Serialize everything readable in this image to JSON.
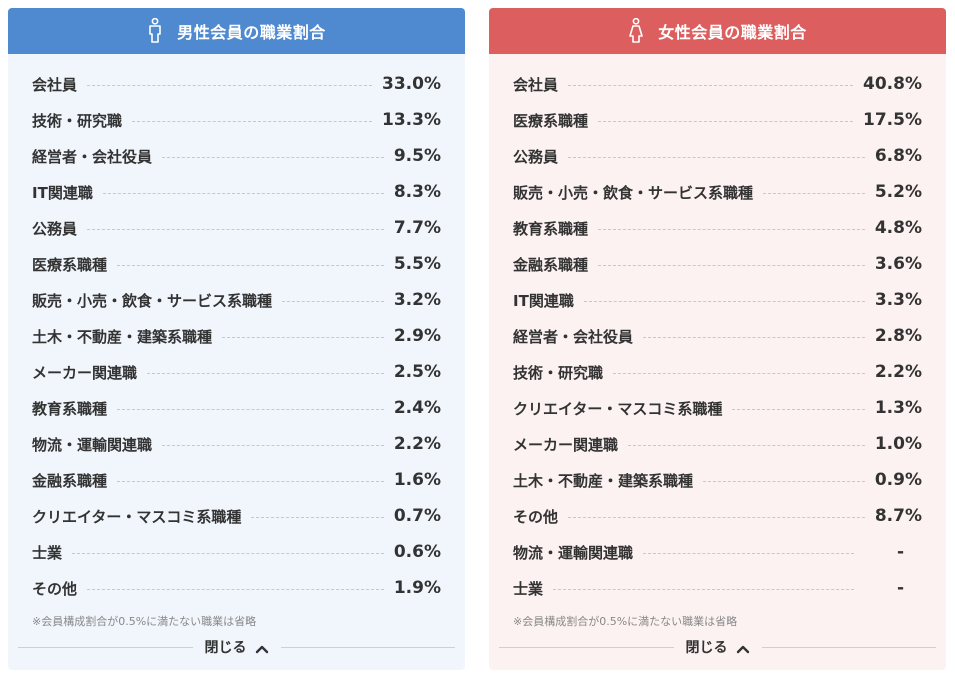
{
  "male": {
    "title": "男性会員の職業割合",
    "icon": "male-person-icon",
    "rows": [
      {
        "label": "会社員",
        "value": "33.0%"
      },
      {
        "label": "技術・研究職",
        "value": "13.3%"
      },
      {
        "label": "経営者・会社役員",
        "value": "9.5%"
      },
      {
        "label": "IT関連職",
        "value": "8.3%"
      },
      {
        "label": "公務員",
        "value": "7.7%"
      },
      {
        "label": "医療系職種",
        "value": "5.5%"
      },
      {
        "label": "販売・小売・飲食・サービス系職種",
        "value": "3.2%"
      },
      {
        "label": "土木・不動産・建築系職種",
        "value": "2.9%"
      },
      {
        "label": "メーカー関連職",
        "value": "2.5%"
      },
      {
        "label": "教育系職種",
        "value": "2.4%"
      },
      {
        "label": "物流・運輸関連職",
        "value": "2.2%"
      },
      {
        "label": "金融系職種",
        "value": "1.6%"
      },
      {
        "label": "クリエイター・マスコミ系職種",
        "value": "0.7%"
      },
      {
        "label": "士業",
        "value": "0.6%"
      },
      {
        "label": "その他",
        "value": "1.9%"
      }
    ],
    "note": "※会員構成割合が0.5%に満たない職業は省略",
    "close_label": "閉じる"
  },
  "female": {
    "title": "女性会員の職業割合",
    "icon": "female-person-icon",
    "rows": [
      {
        "label": "会社員",
        "value": "40.8%"
      },
      {
        "label": "医療系職種",
        "value": "17.5%"
      },
      {
        "label": "公務員",
        "value": "6.8%"
      },
      {
        "label": "販売・小売・飲食・サービス系職種",
        "value": "5.2%"
      },
      {
        "label": "教育系職種",
        "value": "4.8%"
      },
      {
        "label": "金融系職種",
        "value": "3.6%"
      },
      {
        "label": "IT関連職",
        "value": "3.3%"
      },
      {
        "label": "経営者・会社役員",
        "value": "2.8%"
      },
      {
        "label": "技術・研究職",
        "value": "2.2%"
      },
      {
        "label": "クリエイター・マスコミ系職種",
        "value": "1.3%"
      },
      {
        "label": "メーカー関連職",
        "value": "1.0%"
      },
      {
        "label": "土木・不動産・建築系職種",
        "value": "0.9%"
      },
      {
        "label": "その他",
        "value": "8.7%"
      },
      {
        "label": "物流・運輸関連職",
        "value": "-"
      },
      {
        "label": "士業",
        "value": "-"
      }
    ],
    "note": "※会員構成割合が0.5%に満たない職業は省略",
    "close_label": "閉じる"
  },
  "colors": {
    "male_header": "#4f8ad1",
    "male_bg": "#f1f6fd",
    "female_header": "#dd5e5e",
    "female_bg": "#fdf2f2",
    "text": "#333333"
  }
}
